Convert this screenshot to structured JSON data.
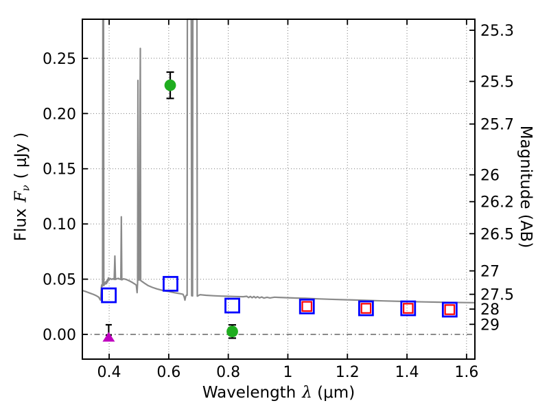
{
  "figure": {
    "background": "#ffffff",
    "xlabel": {
      "pre": "Wavelength",
      "sym": "λ",
      "unit": "(μm)"
    },
    "ylabel": {
      "pre": "Flux",
      "sym": "F",
      "sub": "ν",
      "unit": "( μJy )"
    },
    "right_label": "Magnitude (AB)"
  },
  "chart_data": {
    "type": "line",
    "title": "",
    "xlabel": "Wavelength λ (μm)",
    "ylabel": "Flux Fν ( μJy )",
    "ylabel_right": "Magnitude (AB)",
    "xlim": [
      0.31,
      1.628
    ],
    "ylim": [
      -0.0224,
      0.2854
    ],
    "grid": true,
    "legend": "none",
    "x_ticks": {
      "values": [
        0.4,
        0.6,
        0.8,
        1.0,
        1.2,
        1.4,
        1.6
      ],
      "labels": [
        "0.4",
        "0.6",
        "0.8",
        "1",
        "1.2",
        "1.4",
        "1.6"
      ]
    },
    "y_ticks_flux": {
      "values": [
        0.0,
        0.05,
        0.1,
        0.15,
        0.2,
        0.25
      ],
      "labels": [
        "0.00",
        "0.05",
        "0.10",
        "0.15",
        "0.20",
        "0.25"
      ]
    },
    "y_ticks_magnitude": {
      "labels": [
        "25.3",
        "25.5",
        "25.7",
        "26",
        "26.2",
        "26.5",
        "27",
        "27.5",
        "28",
        "29"
      ],
      "flux_values": [
        0.2754,
        0.2291,
        0.1905,
        0.1445,
        0.1202,
        0.0912,
        0.0575,
        0.0363,
        0.0229,
        0.00912
      ]
    },
    "zero_flux_line": {
      "flux": 0.0,
      "style": "dash-dot"
    },
    "colors": {
      "spectrum": "#8a8a8a",
      "blue_square": "#0000ff",
      "red_square": "#ff0000",
      "green_circle": "#1fad1f",
      "magenta_triangle": "#bf00bf",
      "errorbar": "#000000",
      "grid": "#777777"
    },
    "series": [
      {
        "name": "model_spectrum",
        "type": "line",
        "color_key": "spectrum",
        "points": [
          [
            0.31,
            0.0398
          ],
          [
            0.322,
            0.0387
          ],
          [
            0.335,
            0.0374
          ],
          [
            0.348,
            0.0361
          ],
          [
            0.358,
            0.0349
          ],
          [
            0.365,
            0.0337
          ],
          [
            0.369,
            0.0318
          ],
          [
            0.3705,
            0.0311
          ],
          [
            0.3722,
            0.0338
          ],
          [
            0.3738,
            0.0425
          ],
          [
            0.3752,
            0.0448
          ],
          [
            0.3765,
            0.0435
          ],
          [
            0.3778,
            0.0455
          ],
          [
            0.3788,
            0.3
          ],
          [
            0.3812,
            0.3
          ],
          [
            0.3822,
            0.0442
          ],
          [
            0.384,
            0.0455
          ],
          [
            0.3858,
            0.047
          ],
          [
            0.3876,
            0.0456
          ],
          [
            0.3895,
            0.0478
          ],
          [
            0.3913,
            0.046
          ],
          [
            0.3932,
            0.0492
          ],
          [
            0.395,
            0.0475
          ],
          [
            0.3975,
            0.0512
          ],
          [
            0.4,
            0.0495
          ],
          [
            0.404,
            0.0506
          ],
          [
            0.4085,
            0.0498
          ],
          [
            0.413,
            0.0504
          ],
          [
            0.417,
            0.0497
          ],
          [
            0.4192,
            0.071
          ],
          [
            0.4214,
            0.0497
          ],
          [
            0.426,
            0.0504
          ],
          [
            0.431,
            0.0507
          ],
          [
            0.436,
            0.05
          ],
          [
            0.4392,
            0.0497
          ],
          [
            0.4408,
            0.1065
          ],
          [
            0.4424,
            0.0494
          ],
          [
            0.448,
            0.0503
          ],
          [
            0.455,
            0.0499
          ],
          [
            0.462,
            0.0492
          ],
          [
            0.47,
            0.0482
          ],
          [
            0.478,
            0.047
          ],
          [
            0.485,
            0.0458
          ],
          [
            0.491,
            0.0446
          ],
          [
            0.4938,
            0.0378
          ],
          [
            0.4955,
            0.0468
          ],
          [
            0.4966,
            0.23
          ],
          [
            0.4976,
            0.0496
          ],
          [
            0.5008,
            0.0492
          ],
          [
            0.5048,
            0.259
          ],
          [
            0.5058,
            0.0488
          ],
          [
            0.51,
            0.048
          ],
          [
            0.52,
            0.0461
          ],
          [
            0.53,
            0.0443
          ],
          [
            0.545,
            0.0426
          ],
          [
            0.56,
            0.0412
          ],
          [
            0.58,
            0.0398
          ],
          [
            0.6,
            0.0388
          ],
          [
            0.62,
            0.0377
          ],
          [
            0.64,
            0.0368
          ],
          [
            0.648,
            0.0363
          ],
          [
            0.652,
            0.034
          ],
          [
            0.6545,
            0.031
          ],
          [
            0.657,
            0.0345
          ],
          [
            0.66,
            0.0357
          ],
          [
            0.6618,
            0.0355
          ],
          [
            0.6625,
            0.3
          ],
          [
            0.6757,
            0.3
          ],
          [
            0.677,
            0.035
          ],
          [
            0.68,
            0.0349
          ],
          [
            0.681,
            0.3
          ],
          [
            0.6948,
            0.3
          ],
          [
            0.696,
            0.0346
          ],
          [
            0.705,
            0.0359
          ],
          [
            0.725,
            0.0354
          ],
          [
            0.75,
            0.035
          ],
          [
            0.775,
            0.0347
          ],
          [
            0.8,
            0.0345
          ],
          [
            0.825,
            0.0343
          ],
          [
            0.85,
            0.0341
          ],
          [
            0.862,
            0.0345
          ],
          [
            0.868,
            0.0333
          ],
          [
            0.874,
            0.0344
          ],
          [
            0.88,
            0.0332
          ],
          [
            0.886,
            0.0343
          ],
          [
            0.892,
            0.0331
          ],
          [
            0.898,
            0.0341
          ],
          [
            0.905,
            0.033
          ],
          [
            0.912,
            0.0339
          ],
          [
            0.92,
            0.0329
          ],
          [
            0.93,
            0.0336
          ],
          [
            0.94,
            0.033
          ],
          [
            0.955,
            0.0337
          ],
          [
            0.97,
            0.0335
          ],
          [
            1.0,
            0.0332
          ],
          [
            1.03,
            0.0329
          ],
          [
            1.06,
            0.0327
          ],
          [
            1.1,
            0.0322
          ],
          [
            1.14,
            0.0318
          ],
          [
            1.2,
            0.0313
          ],
          [
            1.26,
            0.0308
          ],
          [
            1.32,
            0.0303
          ],
          [
            1.4,
            0.0298
          ],
          [
            1.46,
            0.0294
          ],
          [
            1.52,
            0.0291
          ],
          [
            1.6,
            0.0288
          ],
          [
            1.628,
            0.0287
          ]
        ]
      },
      {
        "name": "blue_open_squares",
        "type": "scatter",
        "marker": "open-square",
        "color_key": "blue_square",
        "points": [
          [
            0.399,
            0.0354
          ],
          [
            0.606,
            0.0458
          ],
          [
            0.8135,
            0.0261
          ],
          [
            1.064,
            0.0253
          ],
          [
            1.2625,
            0.0236
          ],
          [
            1.404,
            0.0236
          ],
          [
            1.5435,
            0.0224
          ]
        ]
      },
      {
        "name": "red_open_squares",
        "type": "scatter",
        "marker": "open-square-small",
        "color_key": "red_square",
        "points": [
          [
            1.064,
            0.0253
          ],
          [
            1.2625,
            0.0236
          ],
          [
            1.404,
            0.0236
          ],
          [
            1.5435,
            0.0224
          ]
        ]
      },
      {
        "name": "green_filled_circles",
        "type": "scatter",
        "marker": "filled-circle",
        "color_key": "green_circle",
        "points": [
          [
            0.605,
            0.2256
          ],
          [
            0.8135,
            0.0026
          ]
        ],
        "errors": [
          0.0119,
          0.006
        ]
      },
      {
        "name": "magenta_upper_limit",
        "type": "scatter",
        "marker": "filled-triangle-up",
        "color_key": "magenta_triangle",
        "points": [
          [
            0.3985,
            -0.0025
          ]
        ],
        "errorbar_center": 0.004,
        "errorbar_half": 0.0047
      }
    ]
  }
}
